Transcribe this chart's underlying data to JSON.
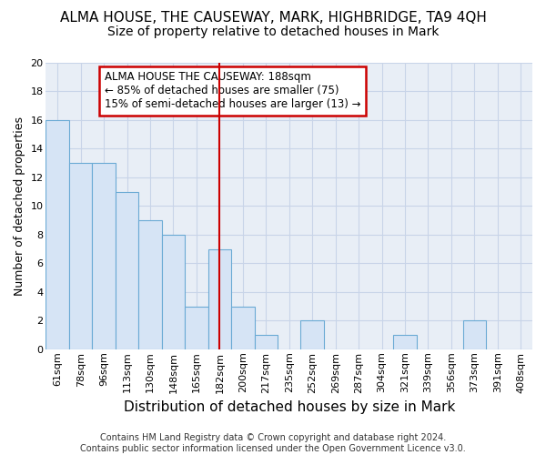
{
  "title": "ALMA HOUSE, THE CAUSEWAY, MARK, HIGHBRIDGE, TA9 4QH",
  "subtitle": "Size of property relative to detached houses in Mark",
  "xlabel": "Distribution of detached houses by size in Mark",
  "ylabel": "Number of detached properties",
  "categories": [
    "61sqm",
    "78sqm",
    "96sqm",
    "113sqm",
    "130sqm",
    "148sqm",
    "165sqm",
    "182sqm",
    "200sqm",
    "217sqm",
    "235sqm",
    "252sqm",
    "269sqm",
    "287sqm",
    "304sqm",
    "321sqm",
    "339sqm",
    "356sqm",
    "373sqm",
    "391sqm",
    "408sqm"
  ],
  "values": [
    16,
    13,
    13,
    11,
    9,
    8,
    3,
    7,
    3,
    1,
    0,
    2,
    0,
    0,
    0,
    1,
    0,
    0,
    2,
    0,
    0
  ],
  "bar_color": "#d6e4f5",
  "bar_edge_color": "#6aaad4",
  "reference_line_x": 7,
  "reference_line_color": "#cc0000",
  "annotation_title": "ALMA HOUSE THE CAUSEWAY: 188sqm",
  "annotation_line1": "← 85% of detached houses are smaller (75)",
  "annotation_line2": "15% of semi-detached houses are larger (13) →",
  "annotation_box_color": "#ffffff",
  "annotation_box_edge_color": "#cc0000",
  "ylim": [
    0,
    20
  ],
  "yticks": [
    0,
    2,
    4,
    6,
    8,
    10,
    12,
    14,
    16,
    18,
    20
  ],
  "plot_bg_color": "#e8eef6",
  "fig_bg_color": "#ffffff",
  "grid_color": "#c8d4e8",
  "footer": "Contains HM Land Registry data © Crown copyright and database right 2024.\nContains public sector information licensed under the Open Government Licence v3.0.",
  "title_fontsize": 11,
  "subtitle_fontsize": 10,
  "xlabel_fontsize": 11,
  "ylabel_fontsize": 9,
  "tick_fontsize": 8,
  "footer_fontsize": 7
}
